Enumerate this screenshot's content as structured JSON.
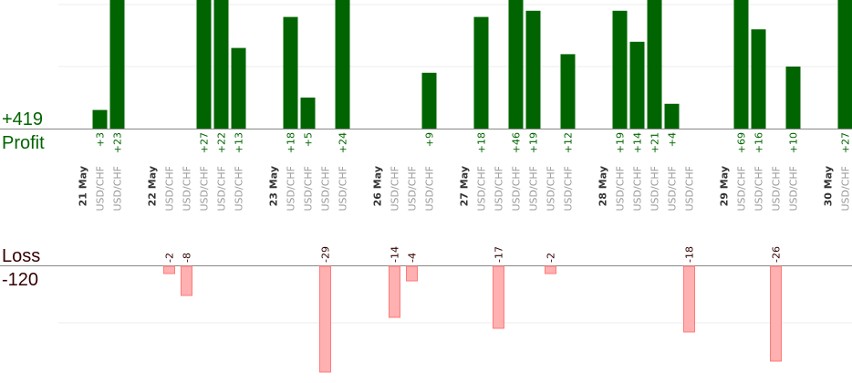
{
  "chart_data": {
    "type": "bar",
    "profit": {
      "total_label": "+419",
      "title": "Profit",
      "color": "#006400"
    },
    "loss": {
      "total_label": "-120",
      "title": "Loss",
      "color": "#ffb0b0",
      "border": "#ff7a7a",
      "label_color": "#330000"
    },
    "categories": [
      {
        "label": "21 May",
        "type": "date"
      },
      {
        "label": "USD/CHF",
        "type": "trade",
        "profit": 3
      },
      {
        "label": "USD/CHF",
        "type": "trade",
        "profit": 23
      },
      {
        "label": "",
        "type": "gap"
      },
      {
        "label": "22 May",
        "type": "date"
      },
      {
        "label": "USD/CHF",
        "type": "trade",
        "loss": -2
      },
      {
        "label": "USD/CHF",
        "type": "trade",
        "loss": -8
      },
      {
        "label": "USD/CHF",
        "type": "trade",
        "profit": 27
      },
      {
        "label": "USD/CHF",
        "type": "trade",
        "profit": 22
      },
      {
        "label": "USD/CHF",
        "type": "trade",
        "profit": 13
      },
      {
        "label": "",
        "type": "gap"
      },
      {
        "label": "23 May",
        "type": "date"
      },
      {
        "label": "USD/CHF",
        "type": "trade",
        "profit": 18
      },
      {
        "label": "USD/CHF",
        "type": "trade",
        "profit": 5
      },
      {
        "label": "USD/CHF",
        "type": "trade",
        "loss": -29
      },
      {
        "label": "USD/CHF",
        "type": "trade",
        "profit": 24
      },
      {
        "label": "",
        "type": "gap"
      },
      {
        "label": "26 May",
        "type": "date"
      },
      {
        "label": "USD/CHF",
        "type": "trade",
        "loss": -14
      },
      {
        "label": "USD/CHF",
        "type": "trade",
        "loss": -4
      },
      {
        "label": "USD/CHF",
        "type": "trade",
        "profit": 9
      },
      {
        "label": "",
        "type": "gap"
      },
      {
        "label": "27 May",
        "type": "date"
      },
      {
        "label": "USD/CHF",
        "type": "trade",
        "profit": 18
      },
      {
        "label": "USD/CHF",
        "type": "trade",
        "loss": -17
      },
      {
        "label": "USD/CHF",
        "type": "trade",
        "profit": 46
      },
      {
        "label": "USD/CHF",
        "type": "trade",
        "profit": 19
      },
      {
        "label": "USD/CHF",
        "type": "trade",
        "loss": -2
      },
      {
        "label": "USD/CHF",
        "type": "trade",
        "profit": 12
      },
      {
        "label": "",
        "type": "gap"
      },
      {
        "label": "28 May",
        "type": "date"
      },
      {
        "label": "USD/CHF",
        "type": "trade",
        "profit": 19
      },
      {
        "label": "USD/CHF",
        "type": "trade",
        "profit": 14
      },
      {
        "label": "USD/CHF",
        "type": "trade",
        "profit": 21
      },
      {
        "label": "USD/CHF",
        "type": "trade",
        "profit": 4
      },
      {
        "label": "USD/CHF",
        "type": "trade",
        "loss": -18
      },
      {
        "label": "",
        "type": "gap"
      },
      {
        "label": "29 May",
        "type": "date"
      },
      {
        "label": "USD/CHF",
        "type": "trade",
        "profit": 69
      },
      {
        "label": "USD/CHF",
        "type": "trade",
        "profit": 16
      },
      {
        "label": "USD/CHF",
        "type": "trade",
        "loss": -26
      },
      {
        "label": "USD/CHF",
        "type": "trade",
        "profit": 10
      },
      {
        "label": "",
        "type": "gap"
      },
      {
        "label": "30 May",
        "type": "date"
      },
      {
        "label": "USD/CHF",
        "type": "trade",
        "profit": 27
      }
    ]
  }
}
